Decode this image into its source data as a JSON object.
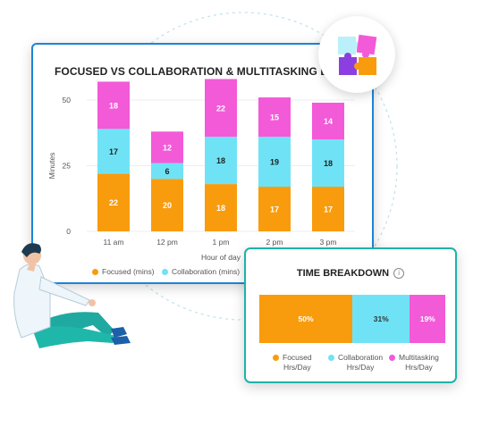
{
  "chart_data": {
    "type": "bar",
    "stacked": true,
    "title": "FOCUSED VS COLLABORATION & MULTITASKING BY HOUR",
    "xlabel": "Hour of day",
    "ylabel": "Minutes",
    "yticks": [
      0,
      25,
      50
    ],
    "ylim": [
      0,
      50
    ],
    "categories": [
      "11 am",
      "12 pm",
      "1 pm",
      "2 pm",
      "3 pm"
    ],
    "series": [
      {
        "name": "Focused (mins)",
        "color": "#f89c0e",
        "values": [
          22,
          20,
          18,
          17,
          17
        ]
      },
      {
        "name": "Collaboration (mins)",
        "color": "#6fe3f5",
        "values": [
          17,
          6,
          18,
          19,
          18
        ]
      },
      {
        "name": "Multitasking",
        "color": "#f25ad8",
        "values": [
          18,
          12,
          22,
          15,
          14
        ]
      }
    ],
    "legend_position": "bottom"
  },
  "legend": {
    "focused": "Focused (mins)",
    "collaboration": "Collaboration (mins)"
  },
  "breakdown": {
    "title": "TIME BREAKDOWN",
    "info_icon": "info-icon",
    "segments": [
      {
        "pct": "50%",
        "value": 50,
        "color": "#f89c0e"
      },
      {
        "pct": "31%",
        "value": 31,
        "color": "#6fe3f5"
      },
      {
        "pct": "19%",
        "value": 19,
        "color": "#f25ad8"
      }
    ],
    "legend": [
      {
        "line1": "Focused",
        "line2": "Hrs/Day",
        "color": "#f89c0e"
      },
      {
        "line1": "Collaboration",
        "line2": "Hrs/Day",
        "color": "#6fe3f5"
      },
      {
        "line1": "Multitasking",
        "line2": "Hrs/Day",
        "color": "#f25ad8"
      }
    ]
  },
  "icons": {
    "puzzle": "puzzle-icon",
    "person": "person-sitting-illustration"
  }
}
